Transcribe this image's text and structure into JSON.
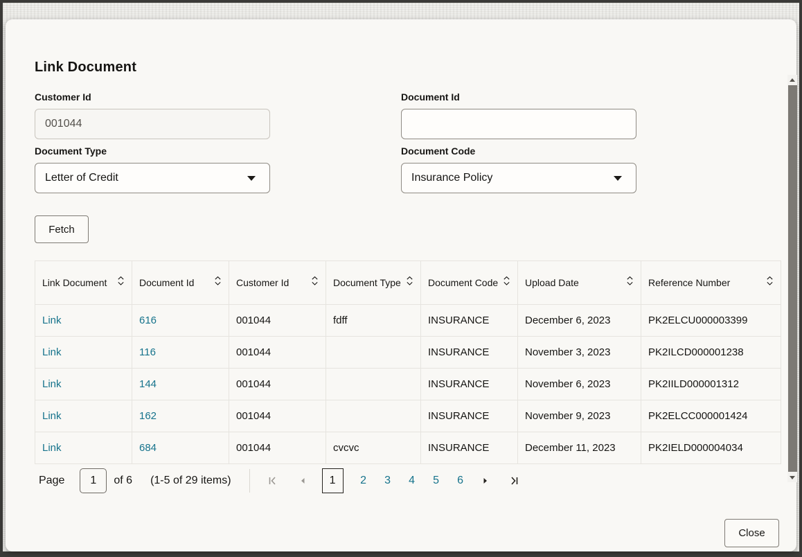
{
  "dialog": {
    "title": "Link Document"
  },
  "form": {
    "customer_id": {
      "label": "Customer Id",
      "value": "001044"
    },
    "document_id": {
      "label": "Document Id",
      "value": ""
    },
    "document_type": {
      "label": "Document Type",
      "selected": "Letter of Credit"
    },
    "document_code": {
      "label": "Document Code",
      "selected": "Insurance Policy"
    },
    "fetch_label": "Fetch"
  },
  "table": {
    "columns": [
      "Link Document",
      "Document Id",
      "Customer Id",
      "Document Type",
      "Document Code",
      "Upload Date",
      "Reference Number"
    ],
    "rows": [
      [
        "Link",
        "616",
        "001044",
        "fdff",
        "INSURANCE",
        "December 6, 2023",
        "PK2ELCU000003399"
      ],
      [
        "Link",
        "116",
        "001044",
        "",
        "INSURANCE",
        "November 3, 2023",
        "PK2ILCD000001238"
      ],
      [
        "Link",
        "144",
        "001044",
        "",
        "INSURANCE",
        "November 6, 2023",
        "PK2IILD000001312"
      ],
      [
        "Link",
        "162",
        "001044",
        "",
        "INSURANCE",
        "November 9, 2023",
        "PK2ELCC000001424"
      ],
      [
        "Link",
        "684",
        "001044",
        "cvcvc",
        "INSURANCE",
        "December 11, 2023",
        "PK2IELD000004034"
      ]
    ]
  },
  "pagination": {
    "page_label": "Page",
    "page_input_value": "1",
    "of_label": "of 6",
    "items_label": "(1-5 of 29 items)",
    "pages": [
      "1",
      "2",
      "3",
      "4",
      "5",
      "6"
    ],
    "current_page": "1"
  },
  "footer": {
    "close_label": "Close"
  },
  "icons": {
    "sort": "sort-chevrons-icon",
    "dropdown": "chevron-down-icon",
    "first": "first-page-icon",
    "prev": "previous-page-icon",
    "next": "next-page-icon",
    "last": "last-page-icon",
    "scroll_up": "scroll-up-icon",
    "scroll_down": "scroll-down-icon"
  },
  "colors": {
    "link": "#16738c",
    "text": "#161513",
    "modal_bg": "#f9f8f5",
    "table_border": "#e6e4df",
    "control_border": "#8f8b84",
    "disabled_icon": "#9b9893"
  }
}
